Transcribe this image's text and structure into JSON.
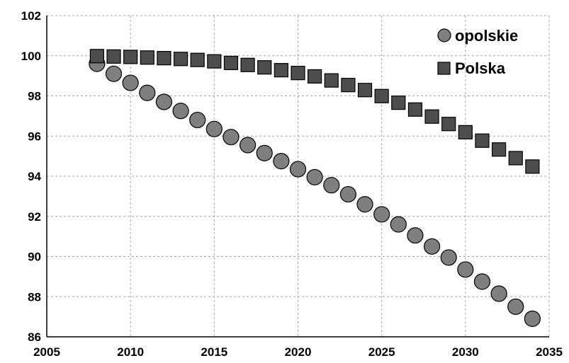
{
  "chart_data": {
    "type": "scatter",
    "title": "",
    "xlabel": "",
    "ylabel": "",
    "xlim": [
      2005,
      2035
    ],
    "ylim": [
      86,
      102
    ],
    "x_ticks": [
      "2005",
      "2010",
      "2015",
      "2020",
      "2025",
      "2030",
      "2035"
    ],
    "y_ticks": [
      "86",
      "88",
      "90",
      "92",
      "94",
      "96",
      "98",
      "100",
      "102"
    ],
    "grid": true,
    "legend_position": "top-right",
    "x": [
      2008,
      2009,
      2010,
      2011,
      2012,
      2013,
      2014,
      2015,
      2016,
      2017,
      2018,
      2019,
      2020,
      2021,
      2022,
      2023,
      2024,
      2025,
      2026,
      2027,
      2028,
      2029,
      2030,
      2031,
      2032,
      2033,
      2034
    ],
    "series": [
      {
        "name": "opolskie",
        "marker": "circle",
        "color": "#7f7f7f",
        "values": [
          99.6,
          99.1,
          98.65,
          98.15,
          97.7,
          97.25,
          96.8,
          96.35,
          95.95,
          95.55,
          95.15,
          94.75,
          94.35,
          93.95,
          93.55,
          93.1,
          92.6,
          92.1,
          91.6,
          91.05,
          90.5,
          89.95,
          89.35,
          88.75,
          88.15,
          87.5,
          86.9
        ]
      },
      {
        "name": "Polska",
        "marker": "square",
        "color": "#4d4d4d",
        "values": [
          99.98,
          99.96,
          99.94,
          99.91,
          99.88,
          99.84,
          99.79,
          99.72,
          99.64,
          99.54,
          99.42,
          99.28,
          99.14,
          98.97,
          98.77,
          98.54,
          98.29,
          97.99,
          97.66,
          97.32,
          96.97,
          96.6,
          96.19,
          95.77,
          95.33,
          94.9,
          94.48
        ]
      }
    ]
  }
}
